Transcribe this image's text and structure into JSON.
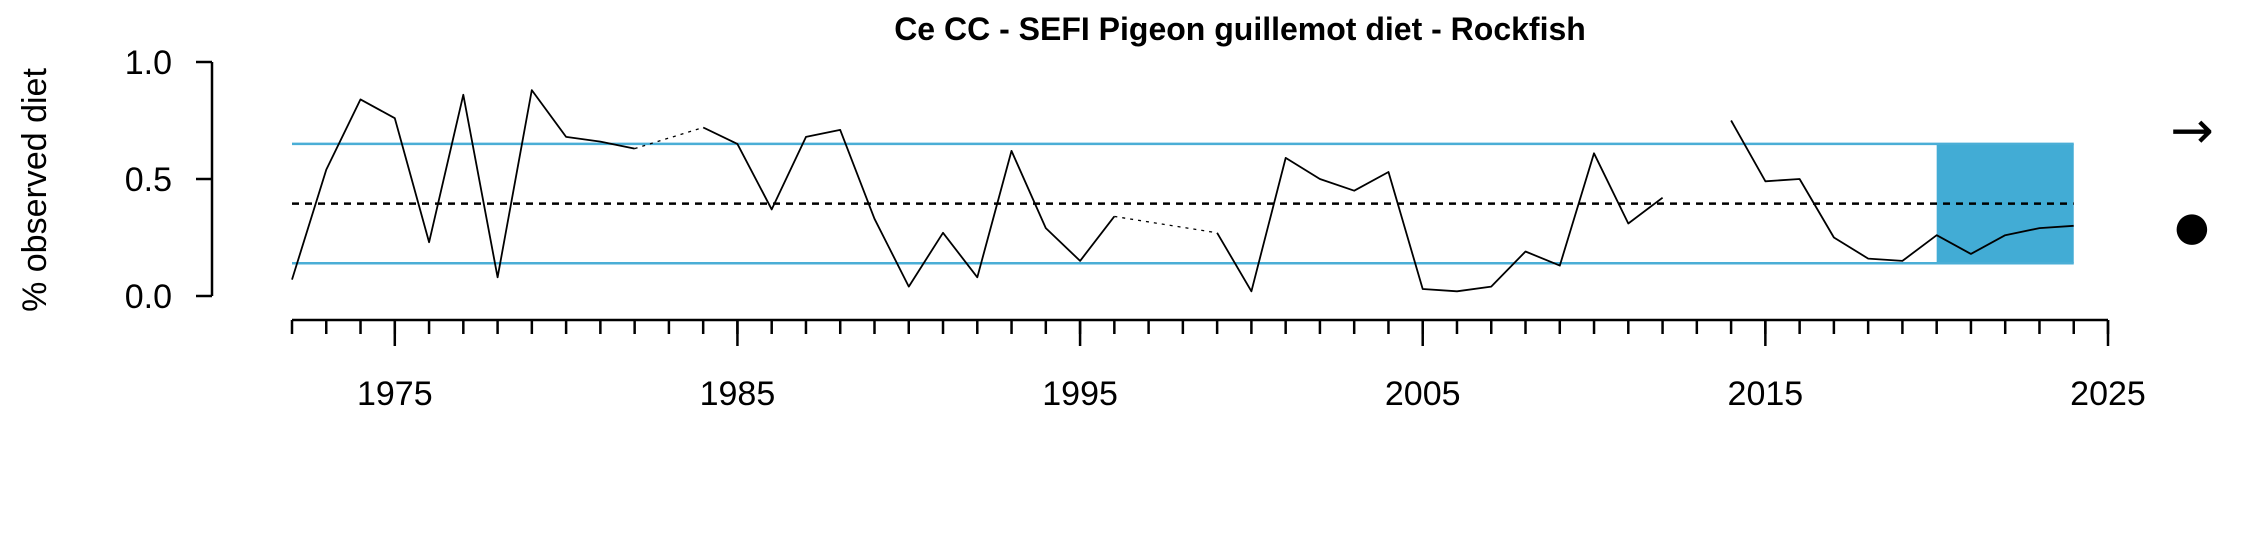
{
  "chart_data": {
    "type": "line",
    "title": "Ce CC - SEFI Pigeon guillemot diet - Rockfish",
    "xlabel": "",
    "ylabel": "% observed diet",
    "xlim": [
      1972,
      2025
    ],
    "ylim": [
      0,
      1
    ],
    "yticks": [
      {
        "value": 0.0,
        "label": "0.0"
      },
      {
        "value": 0.5,
        "label": "0.5"
      },
      {
        "value": 1.0,
        "label": "1.0"
      }
    ],
    "xticks_labeled": [
      {
        "value": 1975,
        "label": "1975"
      },
      {
        "value": 1985,
        "label": "1985"
      },
      {
        "value": 1995,
        "label": "1995"
      },
      {
        "value": 2005,
        "label": "2005"
      },
      {
        "value": 2015,
        "label": "2015"
      },
      {
        "value": 2025,
        "label": "2025"
      }
    ],
    "minor_tick_step": 1,
    "series": [
      {
        "x": [
          1972,
          1973,
          1974,
          1975,
          1976,
          1977,
          1978,
          1979,
          1980,
          1981,
          1982,
          1983,
          1984,
          1985,
          1986,
          1987,
          1988,
          1989,
          1990,
          1991,
          1992,
          1993,
          1994,
          1995,
          1996,
          1997,
          1998,
          1999,
          2000,
          2001,
          2002,
          2003,
          2004,
          2005,
          2006,
          2007,
          2008,
          2009,
          2010,
          2011,
          2012,
          2013,
          2014,
          2015,
          2016,
          2017,
          2018,
          2019,
          2020,
          2021,
          2022,
          2023,
          2024
        ],
        "y": [
          0.07,
          0.54,
          0.84,
          0.76,
          0.23,
          0.86,
          0.08,
          0.88,
          0.68,
          0.66,
          0.63,
          null,
          0.72,
          0.65,
          0.37,
          0.68,
          0.71,
          0.33,
          0.04,
          0.27,
          0.08,
          0.62,
          0.29,
          0.15,
          0.34,
          null,
          null,
          0.27,
          0.02,
          0.59,
          0.5,
          0.45,
          0.53,
          0.03,
          0.02,
          0.04,
          0.19,
          0.13,
          0.61,
          0.31,
          0.42,
          null,
          0.75,
          0.49,
          0.5,
          0.25,
          0.16,
          0.15,
          0.26,
          0.18,
          0.26,
          0.29,
          0.3
        ],
        "color": "#000000"
      }
    ],
    "gap_connectors": [
      {
        "from": [
          1982,
          0.63
        ],
        "to": [
          1984,
          0.72
        ]
      },
      {
        "from": [
          1996,
          0.34
        ],
        "to": [
          1999,
          0.27
        ]
      }
    ],
    "mean": 0.395,
    "mean_style": "dashed",
    "sd_upper": 0.65,
    "sd_lower": 0.14,
    "sd_color": "#4AAED6",
    "recent_window": {
      "x_start": 2020,
      "x_end": 2024,
      "y_bottom": 0.14,
      "y_top": 0.65,
      "color": "#42ACD5"
    },
    "trend_symbol": "→",
    "mean_symbol": "●",
    "grid": false,
    "legend": "none"
  }
}
